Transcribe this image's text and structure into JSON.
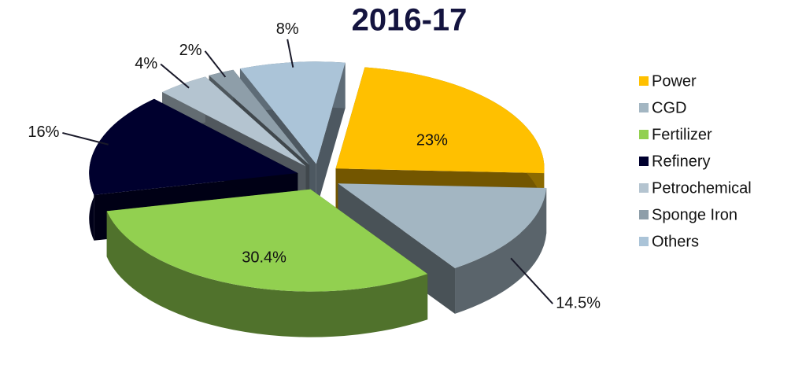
{
  "chart_data": {
    "type": "pie",
    "title": "2016-17",
    "categories": [
      "Power",
      "CGD",
      "Fertilizer",
      "Refinery",
      "Petrochemical",
      "Sponge Iron",
      "Others"
    ],
    "values": [
      23,
      14.5,
      30.4,
      16,
      4,
      2,
      8
    ],
    "value_labels": [
      "23%",
      "14.5%",
      "30.4%",
      "16%",
      "4%",
      "2%",
      "8%"
    ],
    "colors": [
      "#ffc000",
      "#a3b6c2",
      "#92d050",
      "#00002e",
      "#b4c4d0",
      "#8e9ea9",
      "#abc4d8"
    ],
    "legend": "right"
  }
}
